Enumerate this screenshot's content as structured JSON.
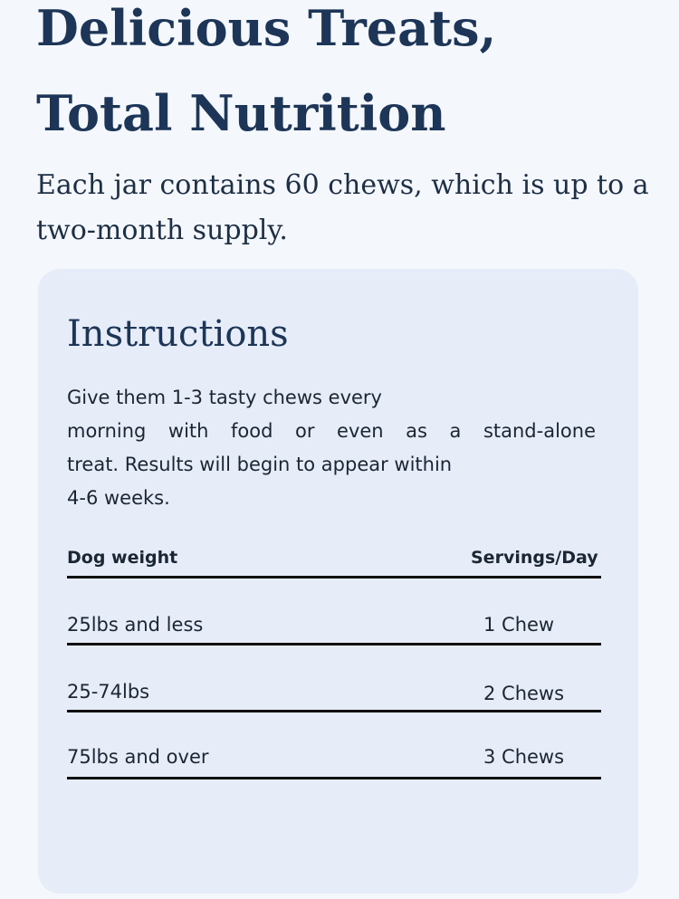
{
  "hero": {
    "headline_line1": "Delicious Treats,",
    "headline_line2": "Total Nutrition",
    "subtitle": "Each jar contains 60 chews, which is up to a two-month supply."
  },
  "instructions_card": {
    "title": "Instructions",
    "text_line1": "Give them 1-3 tasty chews every",
    "text_line2": "morning with food or even as a stand-alone",
    "text_line3": "treat.  Results will begin to appear within",
    "text_line4": "4-6 weeks.",
    "table": {
      "headers": {
        "weight": "Dog weight",
        "servings": "Servings/Day"
      },
      "rows": [
        {
          "weight": "25lbs and less",
          "servings": "1 Chew"
        },
        {
          "weight": "25-74lbs",
          "servings": "2 Chews"
        },
        {
          "weight": "75lbs and over",
          "servings": "3 Chews"
        }
      ]
    }
  },
  "colors": {
    "page_background": "#f4f8fd",
    "card_background": "#e6ecf8",
    "heading": "#1d3557",
    "body_text": "#1b2635",
    "rule": "#111111"
  }
}
